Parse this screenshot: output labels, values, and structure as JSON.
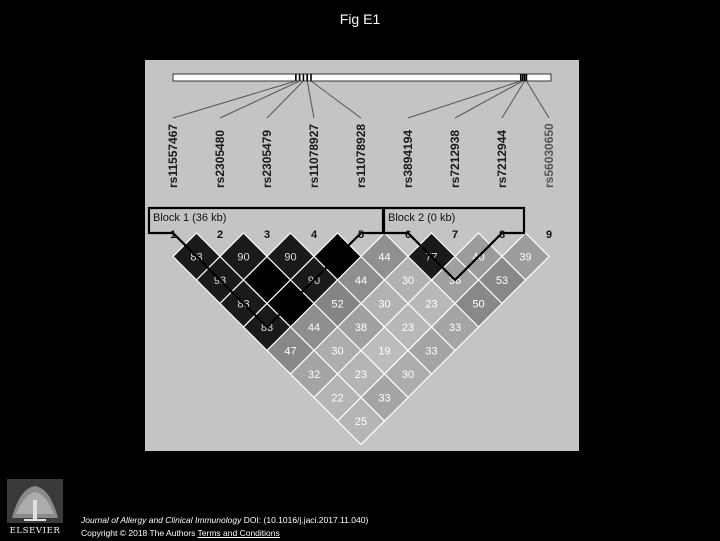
{
  "page": {
    "title": "Fig E1"
  },
  "snps": [
    "rs11557467",
    "rs2305480",
    "rs2305479",
    "rs11078927",
    "rs11078928",
    "rs3894194",
    "rs7212938",
    "rs7212944",
    "rs56030650"
  ],
  "marker_numbers": [
    "1",
    "2",
    "3",
    "4",
    "5",
    "6",
    "7",
    "8",
    "9"
  ],
  "blocks": [
    {
      "label": "Block 1 (36 kb)",
      "first": 1,
      "last": 5
    },
    {
      "label": "Block 2 (0 kb)",
      "first": 6,
      "last": 8
    }
  ],
  "ld_cells": [
    {
      "i": 1,
      "j": 2,
      "value": "83",
      "shade": "#1a1a1a"
    },
    {
      "i": 2,
      "j": 3,
      "value": "90",
      "shade": "#1a1a1a"
    },
    {
      "i": 3,
      "j": 4,
      "value": "90",
      "shade": "#1a1a1a"
    },
    {
      "i": 4,
      "j": 5,
      "value": "",
      "shade": "#000000"
    },
    {
      "i": 5,
      "j": 6,
      "value": "44",
      "shade": "#909090"
    },
    {
      "i": 6,
      "j": 7,
      "value": "77",
      "shade": "#1a1a1a"
    },
    {
      "i": 7,
      "j": 8,
      "value": "40",
      "shade": "#9c9c9c"
    },
    {
      "i": 8,
      "j": 9,
      "value": "39",
      "shade": "#9c9c9c"
    },
    {
      "i": 1,
      "j": 3,
      "value": "93",
      "shade": "#1a1a1a"
    },
    {
      "i": 2,
      "j": 4,
      "value": "",
      "shade": "#000000"
    },
    {
      "i": 3,
      "j": 5,
      "value": "90",
      "shade": "#1a1a1a"
    },
    {
      "i": 4,
      "j": 6,
      "value": "44",
      "shade": "#8e8e8e"
    },
    {
      "i": 5,
      "j": 7,
      "value": "30",
      "shade": "#b2b2b2"
    },
    {
      "i": 6,
      "j": 8,
      "value": "36",
      "shade": "#a0a0a0"
    },
    {
      "i": 7,
      "j": 9,
      "value": "53",
      "shade": "#888888"
    },
    {
      "i": 1,
      "j": 4,
      "value": "83",
      "shade": "#1a1a1a"
    },
    {
      "i": 2,
      "j": 5,
      "value": "",
      "shade": "#000000"
    },
    {
      "i": 3,
      "j": 6,
      "value": "52",
      "shade": "#848484"
    },
    {
      "i": 4,
      "j": 7,
      "value": "30",
      "shade": "#b2b2b2"
    },
    {
      "i": 5,
      "j": 8,
      "value": "23",
      "shade": "#b8b8b8"
    },
    {
      "i": 6,
      "j": 9,
      "value": "50",
      "shade": "#888888"
    },
    {
      "i": 1,
      "j": 5,
      "value": "83",
      "shade": "#1a1a1a"
    },
    {
      "i": 2,
      "j": 6,
      "value": "44",
      "shade": "#8e8e8e"
    },
    {
      "i": 3,
      "j": 7,
      "value": "38",
      "shade": "#a0a0a0"
    },
    {
      "i": 4,
      "j": 8,
      "value": "23",
      "shade": "#b8b8b8"
    },
    {
      "i": 5,
      "j": 9,
      "value": "33",
      "shade": "#a4a4a4"
    },
    {
      "i": 1,
      "j": 6,
      "value": "47",
      "shade": "#888888"
    },
    {
      "i": 2,
      "j": 7,
      "value": "30",
      "shade": "#adadad"
    },
    {
      "i": 3,
      "j": 8,
      "value": "19",
      "shade": "#bcbcbc"
    },
    {
      "i": 4,
      "j": 9,
      "value": "33",
      "shade": "#a4a4a4"
    },
    {
      "i": 1,
      "j": 7,
      "value": "32",
      "shade": "#a4a4a4"
    },
    {
      "i": 2,
      "j": 8,
      "value": "23",
      "shade": "#b5b5b5"
    },
    {
      "i": 3,
      "j": 9,
      "value": "30",
      "shade": "#adadad"
    },
    {
      "i": 1,
      "j": 8,
      "value": "22",
      "shade": "#b5b5b5"
    },
    {
      "i": 2,
      "j": 9,
      "value": "33",
      "shade": "#a4a4a4"
    },
    {
      "i": 1,
      "j": 9,
      "value": "25",
      "shade": "#b5b5b5"
    }
  ],
  "footer": {
    "journal": "Journal of Allergy and Clinical Immunology",
    "doi": " DOI: (10.1016/j.jaci.2017.11.040)",
    "copyright": "Copyright © 2018 The Authors ",
    "terms_link": "Terms and Conditions"
  },
  "publisher_logo_text": "ELSEVIER"
}
